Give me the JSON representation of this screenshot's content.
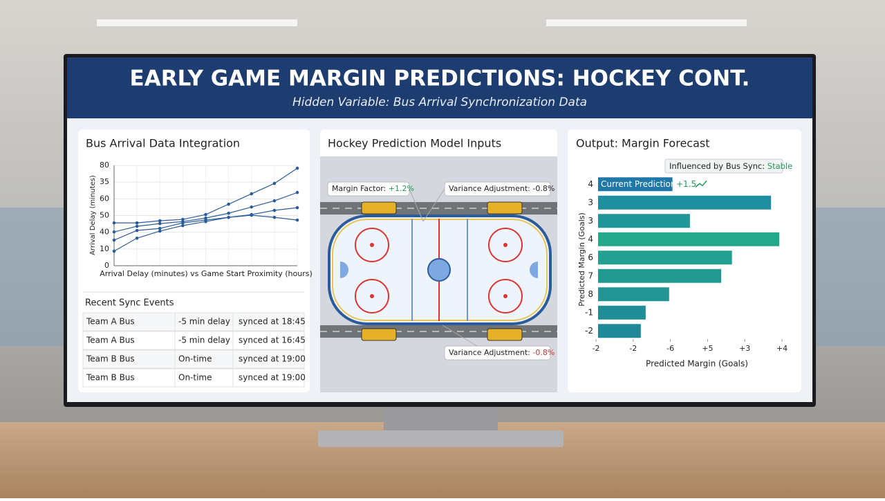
{
  "header": {
    "title": "EARLY GAME MARGIN PREDICTIONS: HOCKEY CONT.",
    "subtitle": "Hidden Variable: Bus Arrival Synchronization Data"
  },
  "panels": [
    "Bus Arrival Data Integration",
    "Hockey Prediction Model Inputs",
    "Output: Margin Forecast"
  ],
  "chart_data": [
    {
      "type": "line",
      "x_label": "Arrival Delay (minutes) vs Game Start Proximity (hours)",
      "y_label": "Arrival Delay (minutes)",
      "categories": [
        null,
        null,
        null,
        null,
        null,
        null,
        null,
        null,
        null
      ],
      "ylim": [
        20,
        80
      ],
      "yticks": [
        {
          "value": 20,
          "label": "0"
        },
        {
          "value": 30,
          "label": "10"
        },
        40,
        50,
        60,
        {
          "value": 70,
          "label": "35"
        },
        80
      ],
      "grid": true,
      "series": [
        {
          "color": "#2b5c9a",
          "values": [
            45.6,
            45.6,
            46.9,
            47.7,
            50.6,
            56.8,
            63.0,
            69.2,
            78.3
          ]
        },
        {
          "color": "#2b5c9a",
          "values": [
            40.2,
            43.6,
            45.2,
            46.4,
            48.5,
            51.4,
            55.1,
            58.8,
            63.8
          ]
        },
        {
          "color": "#2b5c9a",
          "values": [
            35.3,
            41.1,
            42.3,
            45.6,
            47.3,
            48.9,
            50.6,
            53.1,
            54.7
          ]
        },
        {
          "color": "#2b5c9a",
          "values": [
            28.7,
            36.5,
            40.7,
            44.0,
            46.4,
            48.9,
            50.2,
            48.9,
            47.3
          ]
        }
      ]
    },
    {
      "type": "hbar",
      "x_label": "Predicted Margin (Goals)",
      "y_label": "Predicted Margin (Goals)",
      "categories": [
        "4",
        "3",
        "3",
        "4",
        "6",
        "7",
        "8",
        "-1",
        "-2"
      ],
      "values": [
        2.0,
        4.65,
        2.47,
        4.87,
        3.6,
        3.31,
        1.91,
        1.28,
        1.15
      ],
      "colors": [
        "#1f78a8",
        "#1f8fa0",
        "#21969a",
        "#26a88a",
        "#23a090",
        "#22998f",
        "#219494",
        "#218e97",
        "#20899a"
      ],
      "xlim": [
        0,
        5
      ],
      "xticks": [
        {
          "value": 0,
          "label": "-2"
        },
        {
          "value": 1,
          "label": "-2"
        },
        {
          "value": 2,
          "label": "-6"
        },
        {
          "value": 3,
          "label": "+5"
        },
        {
          "value": 4,
          "label": "+3"
        },
        {
          "value": 5,
          "label": "+4"
        }
      ],
      "current_prediction": {
        "label": "Current Prediction:",
        "value": "+1.5"
      },
      "sync_note": {
        "label": "Influenced by Bus Sync:",
        "value": "Stable"
      }
    }
  ],
  "sync_events": {
    "title": "Recent Sync Events",
    "rows": [
      [
        "Team A Bus",
        "-5 min delay",
        "synced at 18:45"
      ],
      [
        "Team A Bus",
        "-5 min delay",
        "synced at 16:45"
      ],
      [
        "Team B Bus",
        "On-time",
        "synced at 19:00"
      ],
      [
        "Team B Bus",
        "On-time",
        "synced at 19:00"
      ]
    ]
  },
  "rink": {
    "annotations": [
      {
        "label": "Margin Factor:",
        "value": "+1.2%"
      },
      {
        "label": "Variance Adjustment:",
        "value": "-0.8%"
      },
      {
        "label": "Variance Adjustment:",
        "value": "-0.8%"
      }
    ]
  }
}
